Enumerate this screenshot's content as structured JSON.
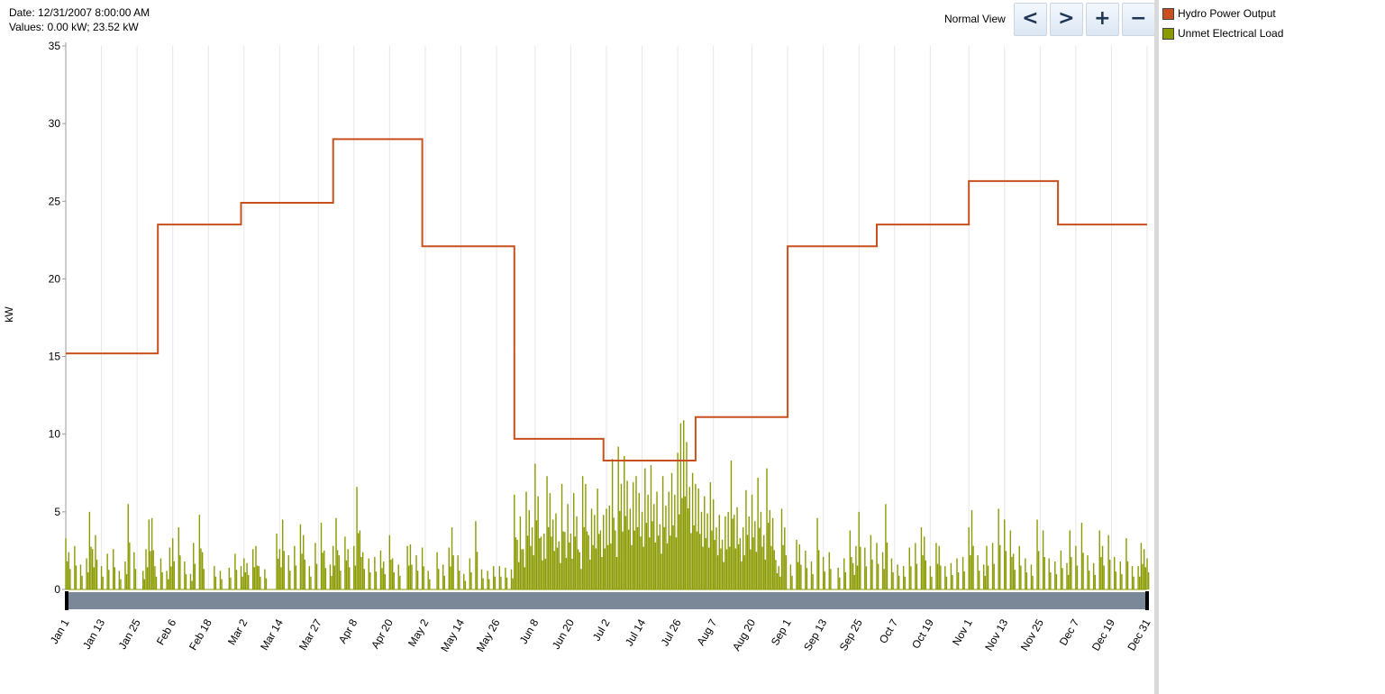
{
  "info": {
    "date_label": "Date:",
    "date_value": "12/31/2007 8:00:00 AM",
    "values_label": "Values:",
    "values_value": "0.00 kW; 23.52 kW"
  },
  "nav": {
    "view_label": "Normal View",
    "prev_label": "<",
    "next_label": ">",
    "zoom_in_label": "+",
    "zoom_out_label": "−"
  },
  "legend": [
    {
      "label": "Hydro Power Output",
      "color": "#c8501e"
    },
    {
      "label": "Unmet Electrical Load",
      "color": "#8a9a00"
    }
  ],
  "chart_data": {
    "type": "line",
    "ylabel": "kW",
    "ylim": [
      0,
      35
    ],
    "yticks": [
      0,
      5,
      10,
      15,
      20,
      25,
      30,
      35
    ],
    "xlim": [
      1,
      365
    ],
    "grid": "vertical",
    "x_ticks": [
      {
        "label": "Jan 1",
        "day": 1
      },
      {
        "label": "Jan 13",
        "day": 13
      },
      {
        "label": "Jan 25",
        "day": 25
      },
      {
        "label": "Feb 6",
        "day": 37
      },
      {
        "label": "Feb 18",
        "day": 49
      },
      {
        "label": "Mar 2",
        "day": 61
      },
      {
        "label": "Mar 14",
        "day": 73
      },
      {
        "label": "Mar 27",
        "day": 86
      },
      {
        "label": "Apr 8",
        "day": 98
      },
      {
        "label": "Apr 20",
        "day": 110
      },
      {
        "label": "May 2",
        "day": 122
      },
      {
        "label": "May 14",
        "day": 134
      },
      {
        "label": "May 26",
        "day": 146
      },
      {
        "label": "Jun 8",
        "day": 159
      },
      {
        "label": "Jun 20",
        "day": 171
      },
      {
        "label": "Jul 2",
        "day": 183
      },
      {
        "label": "Jul 14",
        "day": 195
      },
      {
        "label": "Jul 26",
        "day": 207
      },
      {
        "label": "Aug 7",
        "day": 219
      },
      {
        "label": "Aug 20",
        "day": 232
      },
      {
        "label": "Sep 1",
        "day": 244
      },
      {
        "label": "Sep 13",
        "day": 256
      },
      {
        "label": "Sep 25",
        "day": 268
      },
      {
        "label": "Oct 7",
        "day": 280
      },
      {
        "label": "Oct 19",
        "day": 292
      },
      {
        "label": "Nov 1",
        "day": 305
      },
      {
        "label": "Nov 13",
        "day": 317
      },
      {
        "label": "Nov 25",
        "day": 329
      },
      {
        "label": "Dec 7",
        "day": 341
      },
      {
        "label": "Dec 19",
        "day": 353
      },
      {
        "label": "Dec 31",
        "day": 365
      }
    ],
    "series": [
      {
        "name": "Hydro Power Output",
        "color": "#c8501e",
        "type": "step",
        "steps": [
          {
            "from": 1,
            "to": 32,
            "value": 15.2
          },
          {
            "from": 32,
            "to": 60,
            "value": 23.5
          },
          {
            "from": 60,
            "to": 91,
            "value": 24.9
          },
          {
            "from": 91,
            "to": 121,
            "value": 29.0
          },
          {
            "from": 121,
            "to": 152,
            "value": 22.1
          },
          {
            "from": 152,
            "to": 182,
            "value": 9.7
          },
          {
            "from": 182,
            "to": 213,
            "value": 8.3
          },
          {
            "from": 213,
            "to": 244,
            "value": 11.1
          },
          {
            "from": 244,
            "to": 274,
            "value": 22.1
          },
          {
            "from": 274,
            "to": 305,
            "value": 23.5
          },
          {
            "from": 305,
            "to": 335,
            "value": 26.3
          },
          {
            "from": 335,
            "to": 365,
            "value": 23.5
          }
        ]
      },
      {
        "name": "Unmet Electrical Load",
        "color": "#8a9a00",
        "type": "spikes",
        "points": [
          [
            1,
            3.3
          ],
          [
            2,
            2.4
          ],
          [
            4,
            2.8
          ],
          [
            6,
            1.6
          ],
          [
            8,
            2.0
          ],
          [
            9,
            5.0
          ],
          [
            10,
            2.6
          ],
          [
            11,
            3.5
          ],
          [
            13,
            1.5
          ],
          [
            15,
            2.3
          ],
          [
            17,
            2.6
          ],
          [
            19,
            1.2
          ],
          [
            21,
            1.8
          ],
          [
            22,
            5.5
          ],
          [
            24,
            2.4
          ],
          [
            27,
            1.2
          ],
          [
            28,
            2.6
          ],
          [
            29,
            4.5
          ],
          [
            30,
            4.6
          ],
          [
            31,
            1.5
          ],
          [
            33,
            2.0
          ],
          [
            35,
            1.2
          ],
          [
            36,
            2.7
          ],
          [
            37,
            3.3
          ],
          [
            39,
            4.0
          ],
          [
            41,
            1.8
          ],
          [
            43,
            1.0
          ],
          [
            44,
            3.0
          ],
          [
            46,
            4.8
          ],
          [
            47,
            2.4
          ],
          [
            51,
            1.5
          ],
          [
            53,
            1.2
          ],
          [
            56,
            1.4
          ],
          [
            58,
            2.3
          ],
          [
            60,
            1.5
          ],
          [
            61,
            2.0
          ],
          [
            62,
            1.7
          ],
          [
            64,
            2.6
          ],
          [
            65,
            2.8
          ],
          [
            66,
            1.5
          ],
          [
            68,
            1.3
          ],
          [
            72,
            3.6
          ],
          [
            73,
            2.6
          ],
          [
            74,
            4.5
          ],
          [
            76,
            2.2
          ],
          [
            78,
            2.8
          ],
          [
            80,
            4.2
          ],
          [
            81,
            3.5
          ],
          [
            83,
            1.5
          ],
          [
            85,
            3.0
          ],
          [
            87,
            4.3
          ],
          [
            88,
            2.5
          ],
          [
            90,
            1.6
          ],
          [
            91,
            2.8
          ],
          [
            92,
            4.6
          ],
          [
            93,
            2.2
          ],
          [
            95,
            3.4
          ],
          [
            96,
            2.6
          ],
          [
            98,
            2.8
          ],
          [
            99,
            6.6
          ],
          [
            100,
            3.8
          ],
          [
            101,
            2.4
          ],
          [
            103,
            2.0
          ],
          [
            105,
            2.1
          ],
          [
            107,
            2.5
          ],
          [
            108,
            1.8
          ],
          [
            110,
            3.5
          ],
          [
            111,
            2.0
          ],
          [
            113,
            1.6
          ],
          [
            116,
            2.8
          ],
          [
            117,
            2.9
          ],
          [
            119,
            2.2
          ],
          [
            121,
            2.7
          ],
          [
            123,
            1.2
          ],
          [
            126,
            2.4
          ],
          [
            128,
            1.6
          ],
          [
            130,
            2.7
          ],
          [
            131,
            4.0
          ],
          [
            133,
            2.2
          ],
          [
            135,
            1.0
          ],
          [
            137,
            2.0
          ],
          [
            139,
            4.4
          ],
          [
            141,
            1.3
          ],
          [
            143,
            1.2
          ],
          [
            145,
            1.5
          ],
          [
            147,
            1.5
          ],
          [
            149,
            1.4
          ],
          [
            151,
            1.3
          ],
          [
            152,
            6.1
          ],
          [
            153,
            3.2
          ],
          [
            154,
            4.7
          ],
          [
            155,
            2.6
          ],
          [
            156,
            6.3
          ],
          [
            157,
            5.1
          ],
          [
            158,
            4.0
          ],
          [
            159,
            8.1
          ],
          [
            160,
            6.0
          ],
          [
            161,
            3.4
          ],
          [
            162,
            3.6
          ],
          [
            163,
            7.3
          ],
          [
            164,
            6.2
          ],
          [
            165,
            4.5
          ],
          [
            166,
            4.9
          ],
          [
            167,
            3.1
          ],
          [
            168,
            6.8
          ],
          [
            169,
            3.7
          ],
          [
            170,
            5.5
          ],
          [
            171,
            3.6
          ],
          [
            172,
            6.2
          ],
          [
            173,
            4.7
          ],
          [
            174,
            2.4
          ],
          [
            175,
            7.3
          ],
          [
            176,
            6.8
          ],
          [
            177,
            3.5
          ],
          [
            178,
            5.2
          ],
          [
            179,
            4.8
          ],
          [
            180,
            6.5
          ],
          [
            181,
            3.8
          ],
          [
            182,
            4.8
          ],
          [
            183,
            5.2
          ],
          [
            184,
            5.4
          ],
          [
            185,
            8.4
          ],
          [
            186,
            3.8
          ],
          [
            187,
            9.2
          ],
          [
            188,
            6.8
          ],
          [
            189,
            8.6
          ],
          [
            190,
            7.0
          ],
          [
            191,
            5.2
          ],
          [
            192,
            6.9
          ],
          [
            193,
            7.3
          ],
          [
            194,
            6.2
          ],
          [
            195,
            5.0
          ],
          [
            196,
            7.8
          ],
          [
            197,
            6.1
          ],
          [
            198,
            8.0
          ],
          [
            199,
            5.5
          ],
          [
            200,
            6.3
          ],
          [
            201,
            4.2
          ],
          [
            202,
            7.3
          ],
          [
            203,
            5.4
          ],
          [
            204,
            6.3
          ],
          [
            205,
            7.5
          ],
          [
            206,
            6.1
          ],
          [
            207,
            8.8
          ],
          [
            208,
            10.7
          ],
          [
            209,
            10.9
          ],
          [
            210,
            9.5
          ],
          [
            211,
            6.6
          ],
          [
            212,
            7.5
          ],
          [
            213,
            6.8
          ],
          [
            214,
            6.5
          ],
          [
            215,
            5.0
          ],
          [
            216,
            6.0
          ],
          [
            217,
            4.9
          ],
          [
            218,
            6.9
          ],
          [
            219,
            5.8
          ],
          [
            220,
            4.0
          ],
          [
            221,
            4.8
          ],
          [
            222,
            3.2
          ],
          [
            223,
            4.7
          ],
          [
            224,
            5.0
          ],
          [
            225,
            8.3
          ],
          [
            226,
            4.8
          ],
          [
            227,
            5.3
          ],
          [
            228,
            3.3
          ],
          [
            229,
            4.0
          ],
          [
            230,
            6.4
          ],
          [
            231,
            4.7
          ],
          [
            232,
            6.1
          ],
          [
            233,
            4.4
          ],
          [
            234,
            7.2
          ],
          [
            235,
            5.0
          ],
          [
            236,
            3.5
          ],
          [
            237,
            7.8
          ],
          [
            238,
            5.1
          ],
          [
            239,
            4.6
          ],
          [
            240,
            1.9
          ],
          [
            241,
            1.5
          ],
          [
            242,
            5.2
          ],
          [
            243,
            4.0
          ],
          [
            245,
            1.6
          ],
          [
            247,
            3.2
          ],
          [
            248,
            2.9
          ],
          [
            250,
            2.5
          ],
          [
            252,
            1.8
          ],
          [
            254,
            4.6
          ],
          [
            256,
            2.1
          ],
          [
            258,
            2.4
          ],
          [
            261,
            1.4
          ],
          [
            263,
            2.0
          ],
          [
            265,
            3.8
          ],
          [
            266,
            1.7
          ],
          [
            267,
            2.8
          ],
          [
            268,
            5.0
          ],
          [
            270,
            2.7
          ],
          [
            272,
            3.5
          ],
          [
            274,
            3.0
          ],
          [
            276,
            2.4
          ],
          [
            277,
            5.5
          ],
          [
            279,
            2.0
          ],
          [
            281,
            1.6
          ],
          [
            283,
            1.5
          ],
          [
            285,
            2.7
          ],
          [
            287,
            3.0
          ],
          [
            289,
            4.0
          ],
          [
            290,
            3.4
          ],
          [
            292,
            1.5
          ],
          [
            294,
            3.0
          ],
          [
            295,
            2.8
          ],
          [
            297,
            1.5
          ],
          [
            299,
            1.7
          ],
          [
            301,
            2.0
          ],
          [
            303,
            2.1
          ],
          [
            305,
            4.0
          ],
          [
            306,
            5.1
          ],
          [
            308,
            2.2
          ],
          [
            310,
            1.6
          ],
          [
            311,
            2.8
          ],
          [
            313,
            3.0
          ],
          [
            315,
            5.2
          ],
          [
            317,
            4.5
          ],
          [
            319,
            3.8
          ],
          [
            320,
            2.3
          ],
          [
            322,
            2.8
          ],
          [
            324,
            2.0
          ],
          [
            326,
            1.6
          ],
          [
            328,
            4.5
          ],
          [
            330,
            3.8
          ],
          [
            332,
            2.0
          ],
          [
            334,
            1.8
          ],
          [
            336,
            2.5
          ],
          [
            338,
            1.7
          ],
          [
            339,
            3.8
          ],
          [
            341,
            2.8
          ],
          [
            343,
            4.3
          ],
          [
            345,
            2.2
          ],
          [
            347,
            1.7
          ],
          [
            349,
            3.8
          ],
          [
            350,
            2.8
          ],
          [
            352,
            3.5
          ],
          [
            354,
            2.1
          ],
          [
            356,
            1.8
          ],
          [
            358,
            3.3
          ],
          [
            360,
            1.5
          ],
          [
            362,
            1.5
          ],
          [
            363,
            3.0
          ],
          [
            364,
            2.6
          ],
          [
            365,
            2.0
          ]
        ]
      }
    ]
  }
}
